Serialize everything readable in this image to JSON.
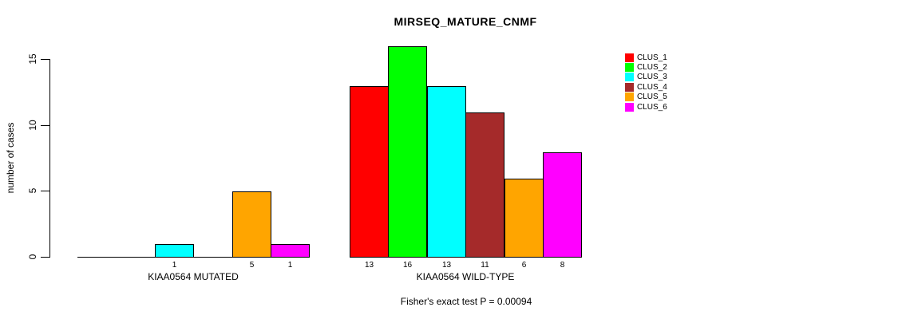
{
  "chart_data": {
    "type": "bar",
    "title": "MIRSEQ_MATURE_CNMF",
    "ylabel": "number of cases",
    "yticks": [
      0,
      5,
      10,
      15
    ],
    "ylim": [
      0,
      16
    ],
    "grid": false,
    "legend_position": "right",
    "legend": [
      {
        "name": "CLUS_1",
        "color": "#FF0000"
      },
      {
        "name": "CLUS_2",
        "color": "#00FF00"
      },
      {
        "name": "CLUS_3",
        "color": "#00FFFF"
      },
      {
        "name": "CLUS_4",
        "color": "#A52A2A"
      },
      {
        "name": "CLUS_5",
        "color": "#FFA500"
      },
      {
        "name": "CLUS_6",
        "color": "#FF00FF"
      }
    ],
    "categories": [
      "CLUS_1",
      "CLUS_2",
      "CLUS_3",
      "CLUS_4",
      "CLUS_5",
      "CLUS_6"
    ],
    "groups": [
      {
        "label": "KIAA0564 MUTATED",
        "values": [
          0,
          0,
          1,
          0,
          5,
          1
        ]
      },
      {
        "label": "KIAA0564 WILD-TYPE",
        "values": [
          13,
          16,
          13,
          11,
          6,
          8
        ]
      }
    ],
    "annotation": "Fisher's exact test P = 0.00094"
  }
}
